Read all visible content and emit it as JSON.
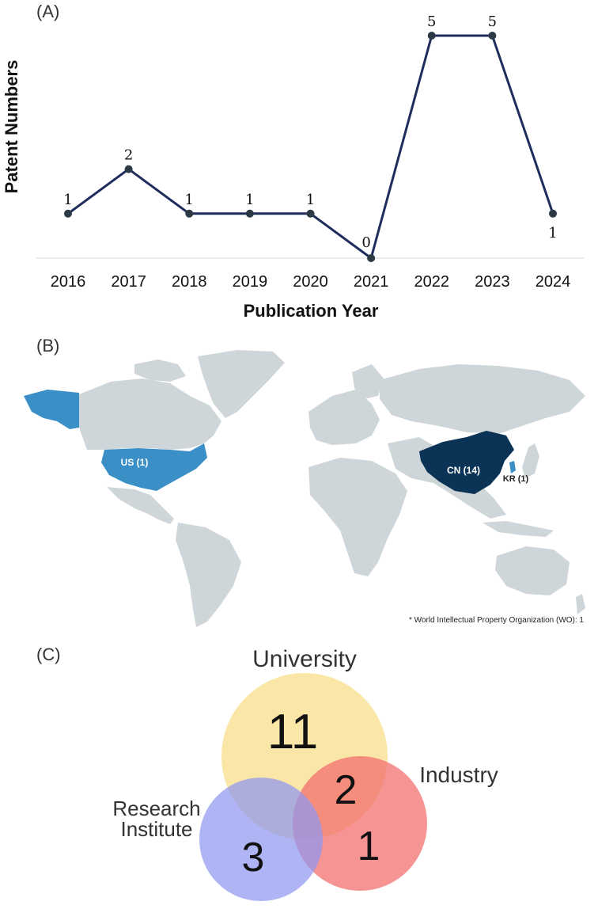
{
  "panels": {
    "a_label": "(A)",
    "b_label": "(B)",
    "c_label": "(C)"
  },
  "chart_data": [
    {
      "type": "line",
      "xlabel": "Publication Year",
      "ylabel": "Patent Numbers",
      "categories": [
        "2016",
        "2017",
        "2018",
        "2019",
        "2020",
        "2021",
        "2022",
        "2023",
        "2024"
      ],
      "values": [
        1,
        2,
        1,
        1,
        1,
        0,
        5,
        5,
        1
      ],
      "ylim": [
        0,
        5
      ],
      "line_color": "#1f2d5c",
      "marker_color": "#2b3a45",
      "data_labels": true,
      "grid": false
    },
    {
      "type": "map",
      "countries": [
        {
          "code": "US",
          "label": "US (1)",
          "value": 1,
          "color": "#3a8fc6"
        },
        {
          "code": "CN",
          "label": "CN (14)",
          "value": 14,
          "color": "#0b3355"
        },
        {
          "code": "KR",
          "label": "KR (1)",
          "value": 1,
          "color": "#3a8fc6"
        }
      ],
      "land_color": "#cfd6da",
      "footnote": "* World Intellectual Property Organization (WO): 1"
    },
    {
      "type": "venn",
      "sets": [
        {
          "name": "University",
          "color": "#f9e08f"
        },
        {
          "name": "Industry",
          "color": "#f26b6b"
        },
        {
          "name": "Research\nInstitute",
          "color": "#8f97f0"
        }
      ],
      "values": [
        {
          "region": "University only",
          "value": 11
        },
        {
          "region": "University ∩ Industry",
          "value": 2
        },
        {
          "region": "Industry only",
          "value": 1
        },
        {
          "region": "Research Institute only",
          "value": 3
        }
      ]
    }
  ]
}
